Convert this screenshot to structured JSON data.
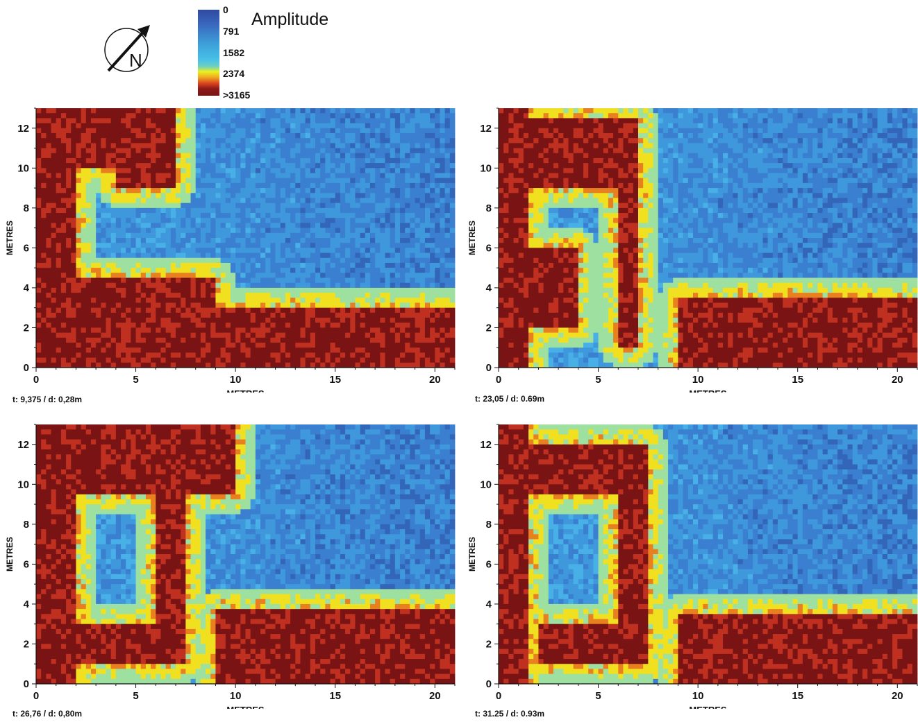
{
  "legend": {
    "title": "Amplitude",
    "ticks": [
      "0",
      "791",
      "1582",
      "2374",
      ">3165"
    ]
  },
  "compass": {
    "label": "N"
  },
  "colors": {
    "deep_blue": "#2f4aa0",
    "blue": "#3a7fd0",
    "light_blue": "#48b8e8",
    "yellow": "#f0e020",
    "red": "#c03020",
    "dark_red": "#7a1414"
  },
  "chart_data": [
    {
      "type": "heatmap",
      "caption": "t: 9,375 / d: 0,28m",
      "xlabel": "METRES",
      "ylabel": "METRES",
      "xlim": [
        0,
        21
      ],
      "ylim": [
        0,
        13
      ],
      "xticks": [
        0,
        5,
        10,
        15,
        20
      ],
      "yticks": [
        0,
        2,
        4,
        6,
        8,
        10,
        12
      ],
      "high_amplitude_zones": [
        {
          "x": [
            0,
            4.5
          ],
          "y": [
            10,
            13
          ]
        },
        {
          "x": [
            0,
            9
          ],
          "y": [
            0,
            4.5
          ]
        },
        {
          "x": [
            0,
            2
          ],
          "y": [
            0,
            13
          ]
        },
        {
          "x": [
            9,
            21
          ],
          "y": [
            0,
            3
          ]
        },
        {
          "x": [
            4,
            7
          ],
          "y": [
            9,
            13
          ]
        }
      ]
    },
    {
      "type": "heatmap",
      "caption": "t: 23,05 / d: 0.69m",
      "xlabel": "METRES",
      "ylabel": "METRES",
      "xlim": [
        0,
        21
      ],
      "ylim": [
        0,
        13
      ],
      "xticks": [
        0,
        5,
        10,
        15,
        20
      ],
      "yticks": [
        0,
        2,
        4,
        6,
        8,
        10,
        12
      ],
      "high_amplitude_zones": [
        {
          "x": [
            0,
            1.5
          ],
          "y": [
            0,
            13
          ]
        },
        {
          "x": [
            0,
            7
          ],
          "y": [
            9,
            12.5
          ]
        },
        {
          "x": [
            6,
            7
          ],
          "y": [
            1,
            9
          ]
        },
        {
          "x": [
            9,
            21
          ],
          "y": [
            0,
            3.5
          ]
        },
        {
          "x": [
            0,
            4
          ],
          "y": [
            2,
            6
          ]
        }
      ]
    },
    {
      "type": "heatmap",
      "caption": "t: 26,76 / d: 0,80m",
      "xlabel": "METRES",
      "ylabel": "METRES",
      "xlim": [
        0,
        21
      ],
      "ylim": [
        0,
        13
      ],
      "xticks": [
        0,
        5,
        10,
        15,
        20
      ],
      "yticks": [
        0,
        2,
        4,
        6,
        8,
        10,
        12
      ],
      "high_amplitude_zones": [
        {
          "x": [
            0,
            2
          ],
          "y": [
            0,
            13
          ]
        },
        {
          "x": [
            0,
            10
          ],
          "y": [
            9.5,
            13
          ]
        },
        {
          "x": [
            6,
            7.5
          ],
          "y": [
            1,
            9.5
          ]
        },
        {
          "x": [
            9,
            21
          ],
          "y": [
            0,
            3.8
          ]
        },
        {
          "x": [
            2,
            7.5
          ],
          "y": [
            1,
            3
          ]
        }
      ]
    },
    {
      "type": "heatmap",
      "caption": "t: 31.25 / d: 0.93m",
      "xlabel": "METRES",
      "ylabel": "METRES",
      "xlim": [
        0,
        21
      ],
      "ylim": [
        0,
        13
      ],
      "xticks": [
        0,
        5,
        10,
        15,
        20
      ],
      "yticks": [
        0,
        2,
        4,
        6,
        8,
        10,
        12
      ],
      "high_amplitude_zones": [
        {
          "x": [
            0,
            1.5
          ],
          "y": [
            0,
            13
          ]
        },
        {
          "x": [
            0,
            7.5
          ],
          "y": [
            9.5,
            12
          ]
        },
        {
          "x": [
            6,
            7.5
          ],
          "y": [
            1,
            9.5
          ]
        },
        {
          "x": [
            9,
            21
          ],
          "y": [
            0,
            3.5
          ]
        },
        {
          "x": [
            2,
            7
          ],
          "y": [
            1,
            3
          ]
        }
      ]
    }
  ]
}
